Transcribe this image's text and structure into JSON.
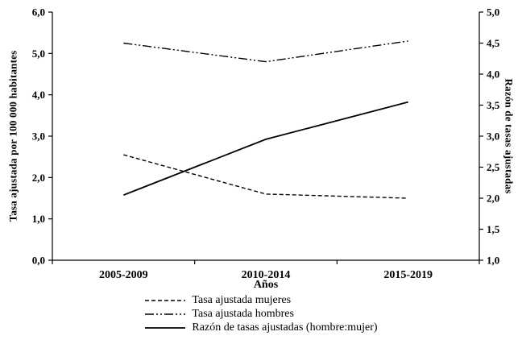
{
  "chart_data": {
    "type": "line",
    "title": "",
    "categories": [
      "2005-2009",
      "2010-2014",
      "2015-2019"
    ],
    "xlabel": "Años",
    "left_axis": {
      "label": "Tasa ajustada por 100 000 habitantes",
      "min": 0,
      "max": 6,
      "step": 1,
      "tick_labels": [
        "0,0",
        "1,0",
        "2,0",
        "3,0",
        "4,0",
        "5,0",
        "6,0"
      ]
    },
    "right_axis": {
      "label": "Razón de tasas ajustadas",
      "min": 1,
      "max": 5,
      "step": 0.5,
      "tick_labels": [
        "1,0",
        "1,5",
        "2,0",
        "2,5",
        "3,0",
        "3,5",
        "4,0",
        "4,5",
        "5,0"
      ]
    },
    "series": [
      {
        "name": "Tasa ajustada mujeres",
        "axis": "left",
        "style": "dashed",
        "values": [
          2.55,
          1.6,
          1.5
        ]
      },
      {
        "name": "Tasa ajustada hombres",
        "axis": "left",
        "style": "dashdotdot",
        "values": [
          5.25,
          4.8,
          5.3
        ]
      },
      {
        "name": "Razón de tasas ajustadas (hombre:mujer)",
        "axis": "right",
        "style": "solid",
        "values": [
          2.05,
          2.95,
          3.55
        ]
      }
    ],
    "legend_position": "bottom",
    "grid": false,
    "color": "#000000"
  }
}
